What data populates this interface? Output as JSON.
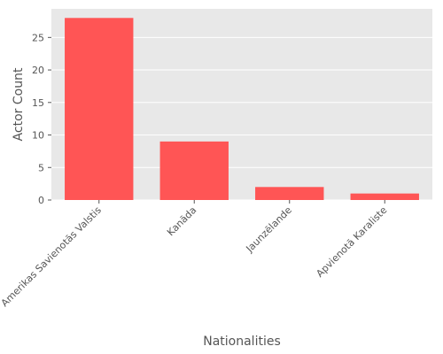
{
  "chart_data": {
    "type": "bar",
    "categories": [
      "Amerikas Savienotās Valstis",
      "Kanāda",
      "Jaunzēlande",
      "Apvienotā Karaliste"
    ],
    "values": [
      28,
      9,
      2,
      1
    ],
    "xlabel": "Nationalities",
    "ylabel": "Actor Count",
    "ylim": [
      0,
      29.4
    ],
    "yticks": [
      0,
      5,
      10,
      15,
      20,
      25
    ],
    "grid": true,
    "bar_color": "#ff5555",
    "background_color": "#e8e8e8",
    "grid_color": "#ffffff"
  }
}
